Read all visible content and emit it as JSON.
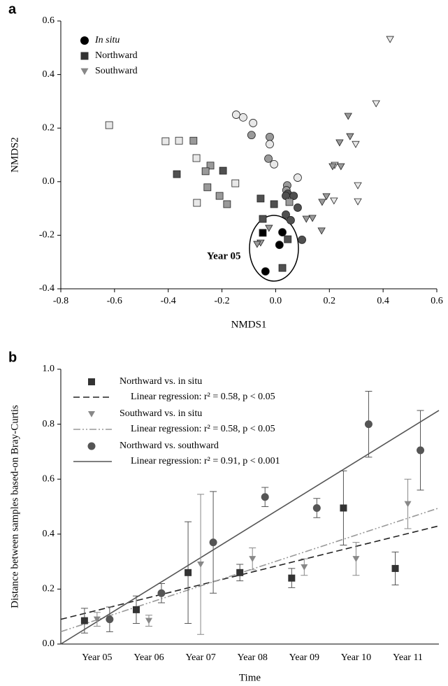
{
  "chart_data": [
    {
      "type": "scatter",
      "panel_label": "a",
      "xlabel": "NMDS1",
      "ylabel": "NMDS2",
      "xlim": [
        -0.8,
        0.6
      ],
      "ylim": [
        -0.4,
        0.6
      ],
      "xticks": [
        -0.8,
        -0.6,
        -0.4,
        -0.2,
        {
          "value": 0,
          "label": "0.0"
        },
        0.2,
        0.4,
        0.6
      ],
      "yticks": [
        -0.4,
        -0.2,
        {
          "value": 0,
          "label": "0.0"
        },
        0.2,
        0.4,
        0.6
      ],
      "annotation": "Year 05",
      "legend": "upper left",
      "series": [
        {
          "name": "In situ",
          "marker": "circle",
          "color": "#000000",
          "x": [
            -0.147,
            -0.121,
            -0.084,
            -0.09,
            -0.022,
            -0.022,
            -0.027,
            -0.006,
            0.082,
            0.043,
            0.04,
            0.045,
            0.067,
            0.038,
            0.082,
            0.038,
            0.056,
            0.098,
            0.025,
            0.014,
            -0.038
          ],
          "y": [
            0.25,
            0.24,
            0.219,
            0.174,
            0.167,
            0.14,
            0.086,
            0.065,
            0.015,
            -0.014,
            -0.032,
            -0.045,
            -0.053,
            -0.053,
            -0.097,
            -0.123,
            -0.144,
            -0.217,
            -0.189,
            -0.236,
            -0.335
          ],
          "point_colors": [
            "#e8e8e8",
            "#e8e8e8",
            "#e8e8e8",
            "#9a9a9a",
            "#9a9a9a",
            "#e8e8e8",
            "#9a9a9a",
            "#e8e8e8",
            "#e8e8e8",
            "#9a9a9a",
            "#9a9a9a",
            "#505050",
            "#505050",
            "#505050",
            "#505050",
            "#505050",
            "#505050",
            "#505050",
            "#000000",
            "#000000",
            "#000000"
          ]
        },
        {
          "name": "Northward",
          "marker": "square",
          "color": "#333333",
          "x": [
            -0.62,
            -0.41,
            -0.36,
            -0.306,
            -0.368,
            -0.295,
            -0.243,
            -0.261,
            -0.196,
            -0.254,
            -0.209,
            -0.293,
            -0.181,
            -0.15,
            -0.056,
            -0.006,
            0.051,
            -0.048,
            -0.048,
            0.045,
            0.025
          ],
          "y": [
            0.211,
            0.151,
            0.153,
            0.153,
            0.028,
            0.088,
            0.06,
            0.039,
            0.041,
            -0.021,
            -0.053,
            -0.079,
            -0.084,
            -0.006,
            -0.063,
            -0.084,
            -0.076,
            -0.139,
            -0.191,
            -0.215,
            -0.322
          ],
          "point_colors": [
            "#e8e8e8",
            "#e8e8e8",
            "#e8e8e8",
            "#9a9a9a",
            "#505050",
            "#e8e8e8",
            "#9a9a9a",
            "#9a9a9a",
            "#505050",
            "#9a9a9a",
            "#9a9a9a",
            "#e8e8e8",
            "#9a9a9a",
            "#e8e8e8",
            "#505050",
            "#505050",
            "#9a9a9a",
            "#505050",
            "#000000",
            "#505050",
            "#505050"
          ]
        },
        {
          "name": "Southward",
          "marker": "triangle-down",
          "color": "#888888",
          "x": [
            0.426,
            0.374,
            0.27,
            0.277,
            0.298,
            0.238,
            0.243,
            0.22,
            0.212,
            0.306,
            0.306,
            0.189,
            0.173,
            0.217,
            0.137,
            0.114,
            0.171,
            -0.025,
            -0.056,
            -0.069
          ],
          "y": [
            0.532,
            0.292,
            0.245,
            0.169,
            0.14,
            0.146,
            0.057,
            0.062,
            0.057,
            -0.014,
            -0.074,
            -0.055,
            -0.076,
            -0.071,
            -0.136,
            -0.139,
            -0.183,
            -0.173,
            -0.228,
            -0.233
          ],
          "point_colors": [
            "#e8e8e8",
            "#e8e8e8",
            "#9a9a9a",
            "#9a9a9a",
            "#e8e8e8",
            "#9a9a9a",
            "#9a9a9a",
            "#e8e8e8",
            "#9a9a9a",
            "#e8e8e8",
            "#e8e8e8",
            "#9a9a9a",
            "#9a9a9a",
            "#e8e8e8",
            "#9a9a9a",
            "#9a9a9a",
            "#9a9a9a",
            "#9a9a9a",
            "#9a9a9a",
            "#9a9a9a"
          ]
        }
      ]
    },
    {
      "type": "errorbar",
      "panel_label": "b",
      "xlabel": "Time",
      "ylabel": "Distance between samples based-on Bray-Curtis",
      "categories": [
        "Year 05",
        "Year 06",
        "Year 07",
        "Year 08",
        "Year 09",
        "Year 10",
        "Year 11"
      ],
      "ylim": [
        0,
        1
      ],
      "yticks": [
        {
          "value": 0,
          "label": "0.0"
        },
        0.2,
        0.4,
        0.6,
        0.8,
        {
          "value": 1,
          "label": "1.0"
        }
      ],
      "legend": "upper left",
      "series": [
        {
          "name": "Northward vs. in situ",
          "marker": "square",
          "color": "#333333",
          "values": [
            0.085,
            0.125,
            0.26,
            0.26,
            0.24,
            0.495,
            0.275
          ],
          "errors": [
            0.045,
            0.05,
            0.185,
            0.03,
            0.035,
            0.135,
            0.06
          ],
          "fit_label": "Linear regression: r² = 0.58, p < 0.05",
          "fit_color": "#222222",
          "fit_style": "dashed",
          "fit_values": [
            0.09,
            0.43
          ]
        },
        {
          "name": "Southward vs. in situ",
          "marker": "triangle-down",
          "color": "#888888",
          "values": [
            0.09,
            0.085,
            0.29,
            0.31,
            0.28,
            0.31,
            0.51
          ],
          "errors": [
            0.025,
            0.02,
            0.255,
            0.04,
            0.03,
            0.06,
            0.09
          ],
          "fit_label": "Linear regression: r² = 0.58, p < 0.05",
          "fit_color": "#999999",
          "fit_style": "dash-dot",
          "fit_values": [
            0.045,
            0.495
          ]
        },
        {
          "name": "Northward vs. southward",
          "marker": "circle",
          "color": "#555555",
          "values": [
            0.09,
            0.185,
            0.37,
            0.535,
            0.495,
            0.8,
            0.705
          ],
          "errors": [
            0.045,
            0.035,
            0.185,
            0.035,
            0.035,
            0.12,
            0.145
          ],
          "fit_label": "Linear regression: r² = 0.91, p < 0.001",
          "fit_color": "#555555",
          "fit_style": "solid",
          "fit_values": [
            0,
            0.85
          ]
        }
      ]
    }
  ]
}
